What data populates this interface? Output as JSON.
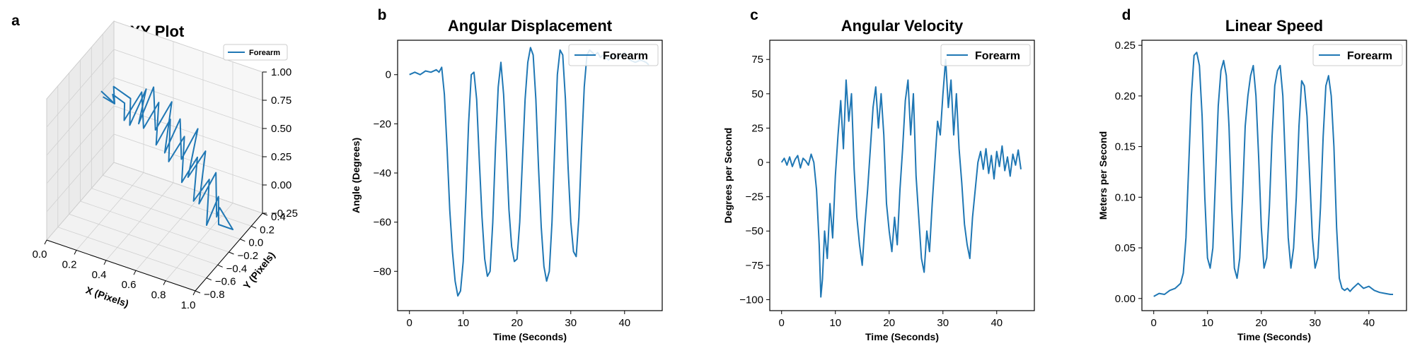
{
  "colors": {
    "series": "#1f77b4",
    "pane": "#f2f2f2",
    "grid": "#d0d0d0"
  },
  "chart_data": [
    {
      "panel_label": "a",
      "type": "line",
      "projection": "3d",
      "title": "XY Plot",
      "xlabel": "X (Pixels)",
      "ylabel": "Y (Pixels)",
      "zlabel": "",
      "xlim": [
        0.0,
        1.0
      ],
      "ylim": [
        -0.8,
        0.4
      ],
      "zlim": [
        -0.25,
        1.0
      ],
      "xticks": [
        "0.0",
        "0.2",
        "0.4",
        "0.6",
        "0.8",
        "1.0"
      ],
      "yticks": [
        "−0.8",
        "−0.6",
        "−0.4",
        "−0.2",
        "0.0",
        "0.2",
        "0.4"
      ],
      "zticks": [
        "−0.25",
        "0.00",
        "0.25",
        "0.50",
        "0.75",
        "1.00"
      ],
      "legend": "upper right",
      "series": [
        {
          "name": "Forearm",
          "x": [
            0.02,
            0.08,
            0.13,
            0.18,
            0.22,
            0.27,
            0.31,
            0.35,
            0.4,
            0.45,
            0.5,
            0.54,
            0.59,
            0.64,
            0.68,
            0.73,
            0.78,
            0.83,
            0.88,
            0.93,
            0.97,
            0.95,
            0.9,
            0.85,
            0.8,
            0.74,
            0.69,
            0.63,
            0.58,
            0.52,
            0.47,
            0.42,
            0.37,
            0.32,
            0.27,
            0.22,
            0.17,
            0.12,
            0.08,
            0.04
          ],
          "y": [
            0.12,
            0.2,
            0.05,
            0.22,
            0.1,
            0.26,
            0.02,
            0.18,
            0.08,
            0.24,
            -0.02,
            0.15,
            0.04,
            0.2,
            -0.08,
            0.1,
            -0.15,
            0.02,
            -0.1,
            -0.18,
            -0.05,
            -0.25,
            -0.12,
            -0.2,
            -0.02,
            -0.14,
            0.06,
            -0.06,
            0.12,
            0.0,
            0.16,
            0.04,
            0.22,
            0.08,
            0.18,
            0.0,
            0.14,
            0.06,
            0.2,
            0.1
          ],
          "z": [
            0.55,
            0.42,
            0.68,
            0.5,
            0.35,
            0.6,
            0.45,
            0.7,
            0.4,
            0.58,
            0.3,
            0.52,
            0.25,
            0.45,
            0.2,
            0.35,
            0.05,
            0.25,
            -0.05,
            0.1,
            -0.15,
            0.0,
            0.15,
            -0.08,
            0.2,
            0.05,
            0.3,
            0.12,
            0.4,
            0.22,
            0.48,
            0.3,
            0.55,
            0.38,
            0.62,
            0.45,
            0.5,
            0.6,
            0.42,
            0.52
          ]
        }
      ]
    },
    {
      "panel_label": "b",
      "type": "line",
      "title": "Angular Displacement",
      "xlabel": "Time (Seconds)",
      "ylabel": "Angle (Degrees)",
      "xlim": [
        -2.2,
        47
      ],
      "ylim": [
        -96,
        14
      ],
      "xticks": [
        0,
        10,
        20,
        30,
        40
      ],
      "yticks": [
        0,
        -20,
        -40,
        -60,
        -80
      ],
      "legend": "upper right",
      "series": [
        {
          "name": "Forearm",
          "x": [
            0,
            1,
            2,
            3,
            4,
            5,
            5.5,
            6,
            6.5,
            7,
            7.5,
            8,
            8.5,
            9,
            9.5,
            10,
            10.5,
            11,
            11.5,
            12,
            12.5,
            13,
            13.5,
            14,
            14.5,
            15,
            15.5,
            16,
            16.5,
            17,
            17.5,
            18,
            18.5,
            19,
            19.5,
            20,
            20.5,
            21,
            21.5,
            22,
            22.5,
            23,
            23.5,
            24,
            24.5,
            25,
            25.5,
            26,
            26.5,
            27,
            27.5,
            28,
            28.5,
            29,
            29.5,
            30,
            30.5,
            31,
            31.5,
            32,
            32.5,
            33,
            33.5,
            34,
            34.5,
            35,
            35.5,
            36,
            36.5,
            37,
            38,
            39,
            40,
            41,
            42,
            43,
            44,
            44.5
          ],
          "y": [
            0,
            1,
            0,
            1.5,
            1,
            2,
            1,
            3,
            -8,
            -30,
            -55,
            -72,
            -84,
            -90,
            -88,
            -76,
            -50,
            -20,
            0,
            1,
            -10,
            -35,
            -58,
            -75,
            -82,
            -80,
            -60,
            -30,
            -5,
            5,
            -8,
            -30,
            -55,
            -70,
            -76,
            -75,
            -60,
            -35,
            -10,
            5,
            11,
            8,
            -10,
            -38,
            -62,
            -78,
            -84,
            -80,
            -60,
            -30,
            0,
            10,
            8,
            -10,
            -38,
            -60,
            -72,
            -74,
            -58,
            -30,
            -5,
            8,
            10,
            9,
            8,
            9,
            7,
            8,
            7,
            6,
            8,
            7,
            9,
            6,
            5,
            6,
            5,
            4
          ]
        }
      ]
    },
    {
      "panel_label": "c",
      "type": "line",
      "title": "Angular Velocity",
      "xlabel": "Time (Seconds)",
      "ylabel": "Degrees per Second",
      "xlim": [
        -2.2,
        47
      ],
      "ylim": [
        -108,
        89
      ],
      "xticks": [
        0,
        10,
        20,
        30,
        40
      ],
      "yticks": [
        75,
        50,
        25,
        0,
        -25,
        -50,
        -75,
        -100
      ],
      "legend": "upper right",
      "series": [
        {
          "name": "Forearm",
          "x": [
            0,
            0.5,
            1,
            1.5,
            2,
            2.5,
            3,
            3.5,
            4,
            4.5,
            5,
            5.5,
            6,
            6.5,
            7,
            7.3,
            7.6,
            8,
            8.5,
            9,
            9.5,
            10,
            10.5,
            11,
            11.5,
            12,
            12.5,
            13,
            13.5,
            14,
            14.5,
            15,
            15.5,
            16,
            16.5,
            17,
            17.5,
            18,
            18.5,
            19,
            19.5,
            20,
            20.5,
            21,
            21.5,
            22,
            22.5,
            23,
            23.5,
            24,
            24.5,
            25,
            25.5,
            26,
            26.5,
            27,
            27.5,
            28,
            28.5,
            29,
            29.5,
            30,
            30.5,
            31,
            31.5,
            32,
            32.5,
            33,
            33.5,
            34,
            34.5,
            35,
            35.5,
            36,
            36.5,
            37,
            37.5,
            38,
            38.5,
            39,
            39.5,
            40,
            40.5,
            41,
            41.5,
            42,
            42.5,
            43,
            43.5,
            44,
            44.5
          ],
          "y": [
            0,
            3,
            -2,
            4,
            -3,
            2,
            5,
            -4,
            3,
            1,
            -2,
            6,
            0,
            -20,
            -60,
            -98,
            -85,
            -50,
            -70,
            -30,
            -55,
            -10,
            20,
            45,
            10,
            60,
            30,
            50,
            -5,
            -40,
            -60,
            -75,
            -45,
            -20,
            10,
            40,
            55,
            25,
            50,
            20,
            -30,
            -50,
            -65,
            -40,
            -60,
            -20,
            10,
            45,
            60,
            20,
            50,
            -10,
            -40,
            -70,
            -80,
            -50,
            -65,
            -30,
            0,
            30,
            20,
            50,
            75,
            40,
            60,
            20,
            50,
            10,
            -15,
            -45,
            -60,
            -70,
            -40,
            -20,
            0,
            8,
            -5,
            10,
            -8,
            5,
            -12,
            8,
            -3,
            12,
            -6,
            4,
            -10,
            6,
            -2,
            9,
            -5
          ]
        }
      ]
    },
    {
      "panel_label": "d",
      "type": "line",
      "title": "Linear Speed",
      "xlabel": "Time (Seconds)",
      "ylabel": "Meters per Second",
      "xlim": [
        -2.2,
        47
      ],
      "ylim": [
        -0.012,
        0.255
      ],
      "xticks": [
        0,
        10,
        20,
        30,
        40
      ],
      "yticks": [
        "0.00",
        "0.05",
        "0.10",
        "0.15",
        "0.20",
        "0.25"
      ],
      "legend": "upper right",
      "series": [
        {
          "name": "Forearm",
          "x": [
            0,
            1,
            2,
            3,
            4,
            5,
            5.5,
            6,
            6.5,
            7,
            7.5,
            8,
            8.5,
            9,
            9.5,
            10,
            10.5,
            11,
            11.5,
            12,
            12.5,
            13,
            13.5,
            14,
            14.5,
            15,
            15.5,
            16,
            16.5,
            17,
            17.5,
            18,
            18.5,
            19,
            19.5,
            20,
            20.5,
            21,
            21.5,
            22,
            22.5,
            23,
            23.5,
            24,
            24.5,
            25,
            25.5,
            26,
            26.5,
            27,
            27.5,
            28,
            28.5,
            29,
            29.5,
            30,
            30.5,
            31,
            31.5,
            32,
            32.5,
            33,
            33.5,
            34,
            34.5,
            35,
            35.5,
            36,
            36.5,
            37,
            38,
            39,
            40,
            41,
            42,
            43,
            44,
            44.5
          ],
          "y": [
            0.002,
            0.005,
            0.004,
            0.008,
            0.01,
            0.015,
            0.025,
            0.06,
            0.13,
            0.2,
            0.24,
            0.243,
            0.23,
            0.18,
            0.1,
            0.04,
            0.03,
            0.05,
            0.12,
            0.19,
            0.225,
            0.235,
            0.22,
            0.17,
            0.09,
            0.03,
            0.02,
            0.04,
            0.1,
            0.17,
            0.2,
            0.22,
            0.23,
            0.2,
            0.14,
            0.07,
            0.03,
            0.04,
            0.09,
            0.16,
            0.21,
            0.225,
            0.23,
            0.2,
            0.13,
            0.06,
            0.03,
            0.05,
            0.1,
            0.17,
            0.215,
            0.21,
            0.18,
            0.12,
            0.06,
            0.03,
            0.04,
            0.09,
            0.16,
            0.21,
            0.22,
            0.2,
            0.15,
            0.07,
            0.02,
            0.01,
            0.008,
            0.01,
            0.007,
            0.01,
            0.015,
            0.01,
            0.012,
            0.008,
            0.006,
            0.005,
            0.004,
            0.004
          ]
        }
      ]
    }
  ]
}
